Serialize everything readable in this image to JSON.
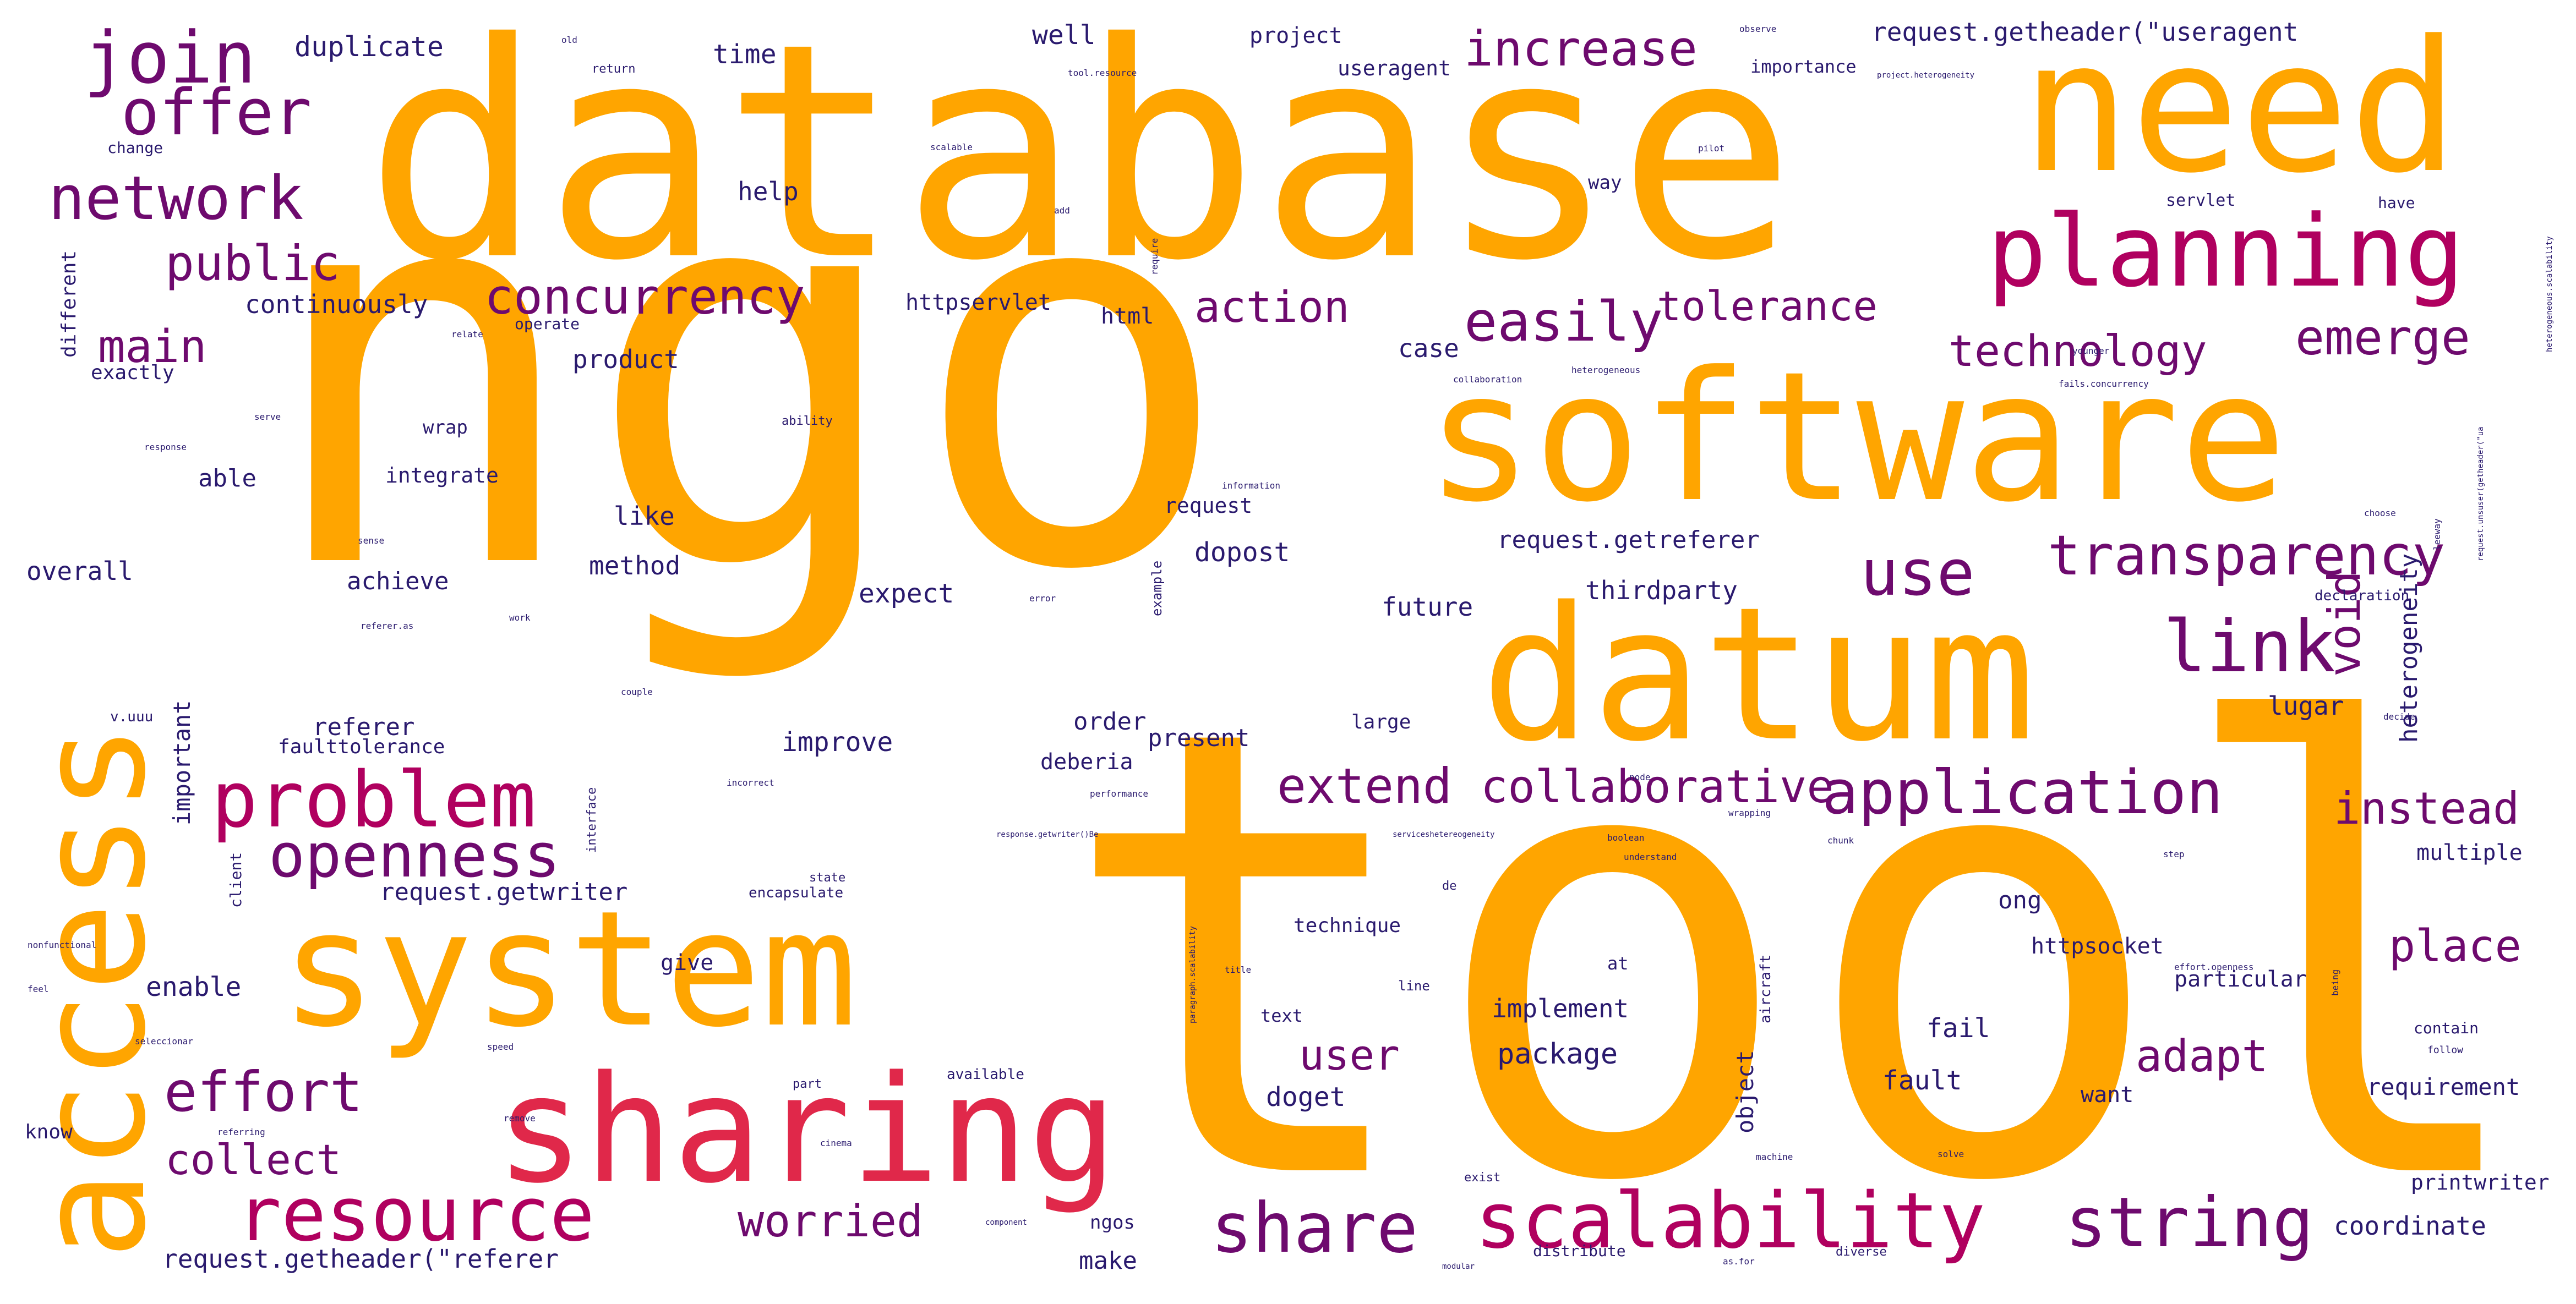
{
  "palette": {
    "orange": "#ffa500",
    "magenta": "#b0005f",
    "crimson": "#e0284a",
    "purple": "#6e0a6e",
    "navy": "#2a1a6e",
    "background": "#ffffff"
  },
  "words": {
    "ngo": "ngo",
    "tool": "tool",
    "database": "database",
    "access": "access",
    "need": "need",
    "software": "software",
    "datum": "datum",
    "system": "system",
    "sharing": "sharing",
    "planning": "planning",
    "problem": "problem",
    "resource": "resource",
    "scalability": "scalability",
    "string": "string",
    "share": "share",
    "join": "join",
    "offer": "offer",
    "openness": "openness",
    "application": "application",
    "network": "network",
    "link": "link",
    "use": "use",
    "transparency": "transparency",
    "concurrency": "concurrency",
    "easily": "easily",
    "increase": "increase",
    "effort": "effort",
    "collaborative": "collaborative",
    "extend": "extend",
    "public": "public",
    "main": "main",
    "action": "action",
    "tolerance": "tolerance",
    "technology": "technology",
    "emerge": "emerge",
    "worried": "worried",
    "instead": "instead",
    "place": "place",
    "adapt": "adapt",
    "void": "void",
    "collect": "collect",
    "user": "user",
    "duplicate": "duplicate",
    "time": "time",
    "well": "well",
    "project": "project",
    "useragent": "useragent",
    "request_getheader_useragent": "request.getheader(\"useragent",
    "importance": "importance",
    "help": "help",
    "continuously": "continuously",
    "httpservlet": "httpservlet",
    "html": "html",
    "product": "product",
    "case": "case",
    "request_getreferer": "request.getreferer",
    "thirdparty": "thirdparty",
    "future": "future",
    "expect": "expect",
    "dopost": "dopost",
    "request": "request",
    "method": "method",
    "achieve": "achieve",
    "overall": "overall",
    "able": "able",
    "integrate": "integrate",
    "wrap": "wrap",
    "like": "like",
    "referer": "referer",
    "faulttolerance": "faulttolerance",
    "improve": "improve",
    "order": "order",
    "deberia": "deberia",
    "present": "present",
    "large": "large",
    "lugar": "lugar",
    "heterogeneity": "heterogeneity",
    "multiple": "multiple",
    "request_getwriter": "request.getwriter",
    "enable": "enable",
    "give": "give",
    "implement": "implement",
    "package": "package",
    "doget": "doget",
    "fail": "fail",
    "fault": "fault",
    "want": "want",
    "requirement": "requirement",
    "ong": "ong",
    "httpsocket": "httpsocket",
    "particular": "particular",
    "coordinate": "coordinate",
    "make": "make",
    "printwriter": "printwriter",
    "request_getheader_referer": "request.getheader(\"referer",
    "important": "important",
    "object": "object",
    "different": "different",
    "exactly": "exactly",
    "change": "change",
    "servlet": "servlet",
    "have": "have",
    "way": "way",
    "technique": "technique",
    "text": "text",
    "at": "at",
    "ngos": "ngos",
    "distribute": "distribute",
    "diverse": "diverse",
    "client": "client",
    "interface": "interface",
    "encapsulate": "encapsulate",
    "state": "state",
    "available": "available",
    "line": "line",
    "aircraft": "aircraft",
    "example": "example",
    "ability": "ability",
    "information": "information",
    "return": "return",
    "old": "old",
    "observe": "observe",
    "tool_resource": "tool.resource",
    "project_heterogeneity": "project.heterogeneity",
    "scalable": "scalable",
    "pilot": "pilot",
    "require": "require",
    "relate": "relate",
    "operate": "operate",
    "choose": "choose",
    "contain": "contain",
    "follow": "follow",
    "know": "know",
    "response": "response",
    "remove": "remove",
    "understand": "understand",
    "machine": "machine",
    "solve": "solve",
    "exist": "exist",
    "part": "part",
    "speed": "speed",
    "title": "title",
    "modular": "modular",
    "performance": "performance",
    "boolean": "boolean",
    "declaration": "declaration",
    "decide": "decide",
    "step": "step",
    "chunk": "chunk",
    "couple": "couple",
    "error": "error",
    "v_uuu": "v.uuu",
    "feel": "feel",
    "seleccionar": "seleccionar",
    "nonfunctional": "nonfunctional",
    "referring": "referring",
    "cinema": "cinema",
    "component": "component",
    "node": "node",
    "wrapping": "wrapping",
    "incorrect": "incorrect",
    "referer_as": "referer.as",
    "work": "work",
    "sense": "sense",
    "serve": "serve",
    "collaboration": "collaboration",
    "heterogeneous": "heterogeneous",
    "fails_concurrency": "fails.concurrency",
    "effort_openness": "effort.openness",
    "being": "being",
    "paragraph_scalability": "paragraph.scalability",
    "leeway": "leeway",
    "response_getwriter": "response.getwriter()Be",
    "serviceshetereogeneity": "serviceshetereogeneity",
    "heterogeneous_scalability": "heterogeneous.scalability",
    "request_unsuser": "request.unsuser(getheader(\"ua",
    "as_for": "as.for",
    "younger": "younger",
    "add": "add",
    "de": "de"
  }
}
